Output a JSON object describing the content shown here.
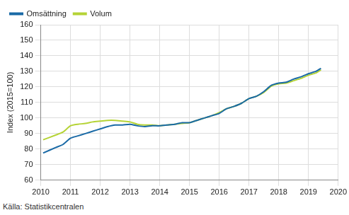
{
  "chart_data": {
    "type": "line",
    "y_label": "Index (2015=100)",
    "source": "Källa: Statistikcentralen",
    "x": [
      2010.08,
      2010.5,
      2010.75,
      2011.0,
      2011.25,
      2011.5,
      2011.75,
      2012.0,
      2012.25,
      2012.5,
      2012.75,
      2013.0,
      2013.25,
      2013.5,
      2013.75,
      2014.0,
      2014.25,
      2014.5,
      2014.75,
      2015.0,
      2015.25,
      2015.5,
      2015.75,
      2016.0,
      2016.25,
      2016.5,
      2016.75,
      2017.0,
      2017.25,
      2017.5,
      2017.75,
      2018.0,
      2018.25,
      2018.5,
      2018.75,
      2019.0,
      2019.25,
      2019.42
    ],
    "series": [
      {
        "name": "Omsättning",
        "color": "#1a6aa6",
        "values": [
          77.5,
          81,
          83,
          87,
          88.5,
          90,
          91.5,
          93,
          94.5,
          95.5,
          95.5,
          96,
          95,
          94.5,
          95,
          95,
          95.5,
          96,
          97,
          97,
          98.5,
          100,
          101.5,
          103,
          106,
          107.5,
          109.5,
          112.5,
          114,
          117,
          121,
          122.5,
          123,
          125,
          126.5,
          128.5,
          130,
          132
        ]
      },
      {
        "name": "Volum",
        "color": "#b5d335",
        "values": [
          86,
          89,
          91,
          95,
          96,
          96.5,
          97.5,
          98,
          98.5,
          98.5,
          98,
          97.5,
          96,
          95.5,
          95.5,
          95,
          95.5,
          96,
          96.5,
          97,
          98.5,
          100,
          101.5,
          103.5,
          106,
          107.5,
          109.5,
          112.5,
          114,
          116.5,
          120.5,
          122,
          122.5,
          124,
          125.5,
          127.5,
          129,
          131
        ]
      }
    ],
    "xlim": [
      2010,
      2020
    ],
    "xticks": [
      2010,
      2011,
      2012,
      2013,
      2014,
      2015,
      2016,
      2017,
      2018,
      2019,
      2020
    ],
    "ylim": [
      60,
      160
    ],
    "yticks": [
      60,
      70,
      80,
      90,
      100,
      110,
      120,
      130,
      140,
      150,
      160
    ],
    "grid": true,
    "legend": "top-left"
  }
}
